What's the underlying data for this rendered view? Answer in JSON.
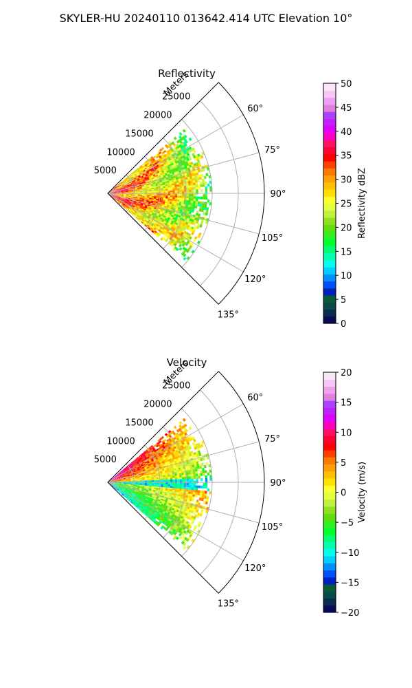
{
  "suptitle": "SKYLER-HU  20240110  013642.414 UTC Elevation 10°",
  "chart_data": [
    {
      "type": "heatmap",
      "subtype": "polar-sector",
      "title": "Reflectivity",
      "radial_label": "Meters",
      "radial_ticks": [
        "5000",
        "10000",
        "15000",
        "20000",
        "25000"
      ],
      "radial_values": [
        5000,
        10000,
        15000,
        20000,
        25000
      ],
      "angle_ticks": [
        "60°",
        "75°",
        "90°",
        "105°",
        "120°",
        "135°"
      ],
      "angle_values": [
        60,
        75,
        90,
        105,
        120,
        135
      ],
      "theta_range": [
        45,
        135
      ],
      "r_range": [
        0,
        30000
      ],
      "data_extent_m": 20000,
      "grid": true,
      "colorbar": {
        "label": "Reflectivity dBZ",
        "range": [
          0,
          50
        ],
        "ticks": [
          "0",
          "5",
          "10",
          "15",
          "20",
          "25",
          "30",
          "35",
          "40",
          "45",
          "50"
        ],
        "tick_values": [
          0,
          5,
          10,
          15,
          20,
          25,
          30,
          35,
          40,
          45,
          50
        ],
        "colors": [
          "#0a0a5a",
          "#0b2a50",
          "#0b4a45",
          "#0a5a3a",
          "#0020c0",
          "#0050ff",
          "#0090ff",
          "#00d0ff",
          "#00ffe8",
          "#00ffb0",
          "#00ff70",
          "#00ff30",
          "#30f020",
          "#60dd10",
          "#90e020",
          "#c0f040",
          "#e0ff40",
          "#ffff30",
          "#ffe000",
          "#ffc000",
          "#ffa000",
          "#ff7800",
          "#ff4000",
          "#ff0000",
          "#ff0030",
          "#ff1060",
          "#ff00c0",
          "#e000ff",
          "#c020ff",
          "#b040ff",
          "#e080e0",
          "#f0a0f0",
          "#f5c8f5",
          "#fae6fa"
        ]
      }
    },
    {
      "type": "heatmap",
      "subtype": "polar-sector",
      "title": "Velocity",
      "radial_label": "Meters",
      "radial_ticks": [
        "5000",
        "10000",
        "15000",
        "20000",
        "25000"
      ],
      "radial_values": [
        5000,
        10000,
        15000,
        20000,
        25000
      ],
      "angle_ticks": [
        "60°",
        "75°",
        "90°",
        "105°",
        "120°",
        "135°"
      ],
      "angle_values": [
        60,
        75,
        90,
        105,
        120,
        135
      ],
      "theta_range": [
        45,
        135
      ],
      "r_range": [
        0,
        30000
      ],
      "data_extent_m": 20000,
      "grid": true,
      "colorbar": {
        "label": "Velocity (m/s)",
        "range": [
          -20,
          20
        ],
        "ticks": [
          "−20",
          "−15",
          "−10",
          "−5",
          "0",
          "5",
          "10",
          "15",
          "20"
        ],
        "tick_values": [
          -20,
          -15,
          -10,
          -5,
          0,
          5,
          10,
          15,
          20
        ],
        "colors": [
          "#0a0a5a",
          "#0b2a50",
          "#0b4a45",
          "#0a5a3a",
          "#0020c0",
          "#0050ff",
          "#0090ff",
          "#00d0ff",
          "#00ffe8",
          "#00ffb0",
          "#00ff70",
          "#00ff30",
          "#30f020",
          "#60dd10",
          "#90e020",
          "#c0f040",
          "#e0ff40",
          "#ffff30",
          "#ffe000",
          "#ffc000",
          "#ffa000",
          "#ff7800",
          "#ff4000",
          "#ff0000",
          "#ff0030",
          "#ff1060",
          "#ff00c0",
          "#e000ff",
          "#c020ff",
          "#b040ff",
          "#e080e0",
          "#f0a0f0",
          "#f5c8f5",
          "#fae6fa"
        ]
      }
    }
  ]
}
